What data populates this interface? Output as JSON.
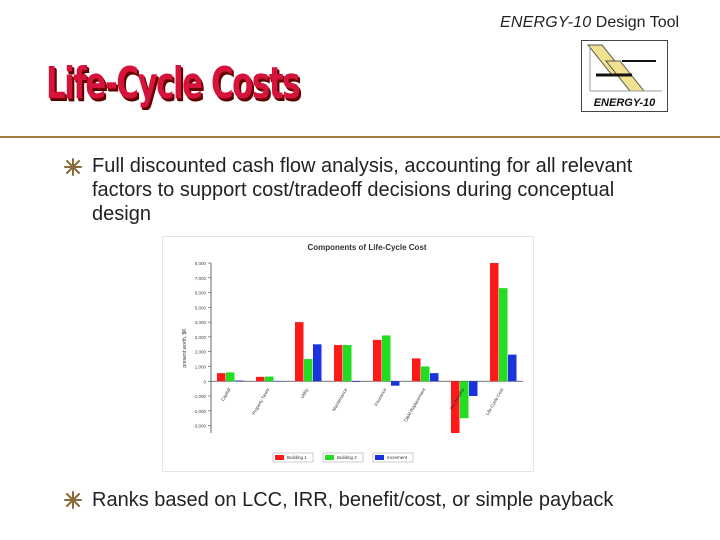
{
  "header": {
    "tool_brand": "ENERGY-10",
    "tool_suffix": "Design Tool",
    "title": "Life-Cycle Costs",
    "logo_text": "ENERGY-10"
  },
  "bullets": [
    "Full discounted cash flow analysis, accounting for all relevant factors to support cost/tradeoff decisions during conceptual design",
    "Ranks based on LCC, IRR, benefit/cost, or simple payback"
  ],
  "colors": {
    "title": "#d6143b",
    "rule": "#a07a40",
    "series_1": "#ff1a1a",
    "series_2": "#22dd22",
    "series_3": "#1a33dd"
  },
  "chart_data": {
    "type": "bar",
    "title": "Components of Life-Cycle Cost",
    "ylabel": "present worth, $K",
    "xlabel": "",
    "ylim": [
      -3500,
      8000
    ],
    "yticks": [
      -3500,
      -3000,
      -2500,
      -2000,
      -1500,
      -1000,
      -500,
      0,
      500,
      1000,
      1500,
      2000,
      2500,
      3000,
      3500,
      4000,
      4500,
      5000,
      5500,
      6000,
      6500,
      7000,
      7500,
      8000
    ],
    "grid": false,
    "legend_position": "bottom",
    "categories": [
      "Capital",
      "Property Taxes",
      "Utility",
      "Maintenance",
      "Insurance",
      "O&M Replacement",
      "Tax Benefits",
      "Life-Cycle Cost"
    ],
    "series": [
      {
        "name": "Building 1",
        "values": [
          550,
          300,
          4000,
          2450,
          2800,
          1550,
          -3500,
          8000
        ]
      },
      {
        "name": "Building 2",
        "values": [
          600,
          320,
          1500,
          2450,
          3100,
          1000,
          -2500,
          6300
        ]
      },
      {
        "name": "Increment",
        "values": [
          50,
          20,
          2500,
          0,
          -300,
          550,
          -1000,
          1800
        ]
      }
    ]
  }
}
